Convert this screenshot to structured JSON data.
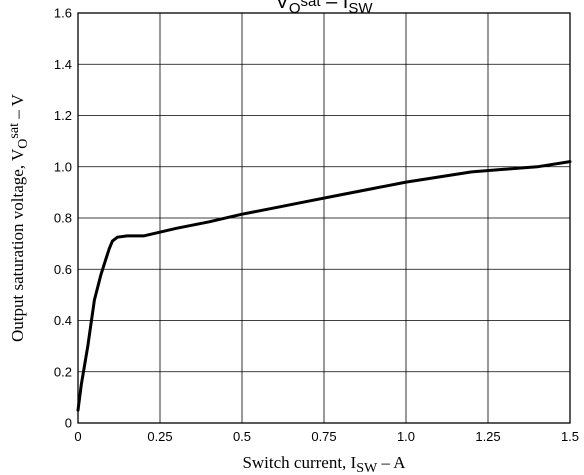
{
  "chart_data": {
    "type": "line",
    "title_main": "V",
    "title_sub1": "O",
    "title_sup": "sat",
    "title_dash": " – I",
    "title_sub2": "SW",
    "xlabel_prefix": "Switch current, I",
    "xlabel_sub": "SW",
    "xlabel_suffix": " – A",
    "ylabel_prefix": "Output saturation voltage, V",
    "ylabel_sub": "O",
    "ylabel_sup": "sat",
    "ylabel_suffix": " – V",
    "xlim": [
      0,
      1.5
    ],
    "ylim": [
      0,
      1.6
    ],
    "x_ticks": [
      "0",
      "0.25",
      "0.5",
      "0.75",
      "1.0",
      "1.25",
      "1.5"
    ],
    "x_tick_values": [
      0,
      0.25,
      0.5,
      0.75,
      1.0,
      1.25,
      1.5
    ],
    "y_ticks": [
      "0",
      "0.2",
      "0.4",
      "0.6",
      "0.8",
      "1.0",
      "1.2",
      "1.4",
      "1.6"
    ],
    "y_tick_values": [
      0,
      0.2,
      0.4,
      0.6,
      0.8,
      1.0,
      1.2,
      1.4,
      1.6
    ],
    "grid": true,
    "legend": "none",
    "line_color": "#000000",
    "series": [
      {
        "x": [
          0,
          0.01,
          0.03,
          0.05,
          0.07,
          0.085,
          0.095,
          0.105,
          0.12,
          0.15,
          0.2,
          0.3,
          0.4,
          0.5,
          0.6,
          0.7,
          0.8,
          0.9,
          1.0,
          1.1,
          1.2,
          1.3,
          1.4,
          1.5
        ],
        "y": [
          0.05,
          0.15,
          0.3,
          0.48,
          0.58,
          0.64,
          0.68,
          0.71,
          0.725,
          0.73,
          0.73,
          0.76,
          0.785,
          0.815,
          0.84,
          0.865,
          0.89,
          0.915,
          0.94,
          0.96,
          0.98,
          0.99,
          1.0,
          1.02
        ]
      }
    ]
  }
}
